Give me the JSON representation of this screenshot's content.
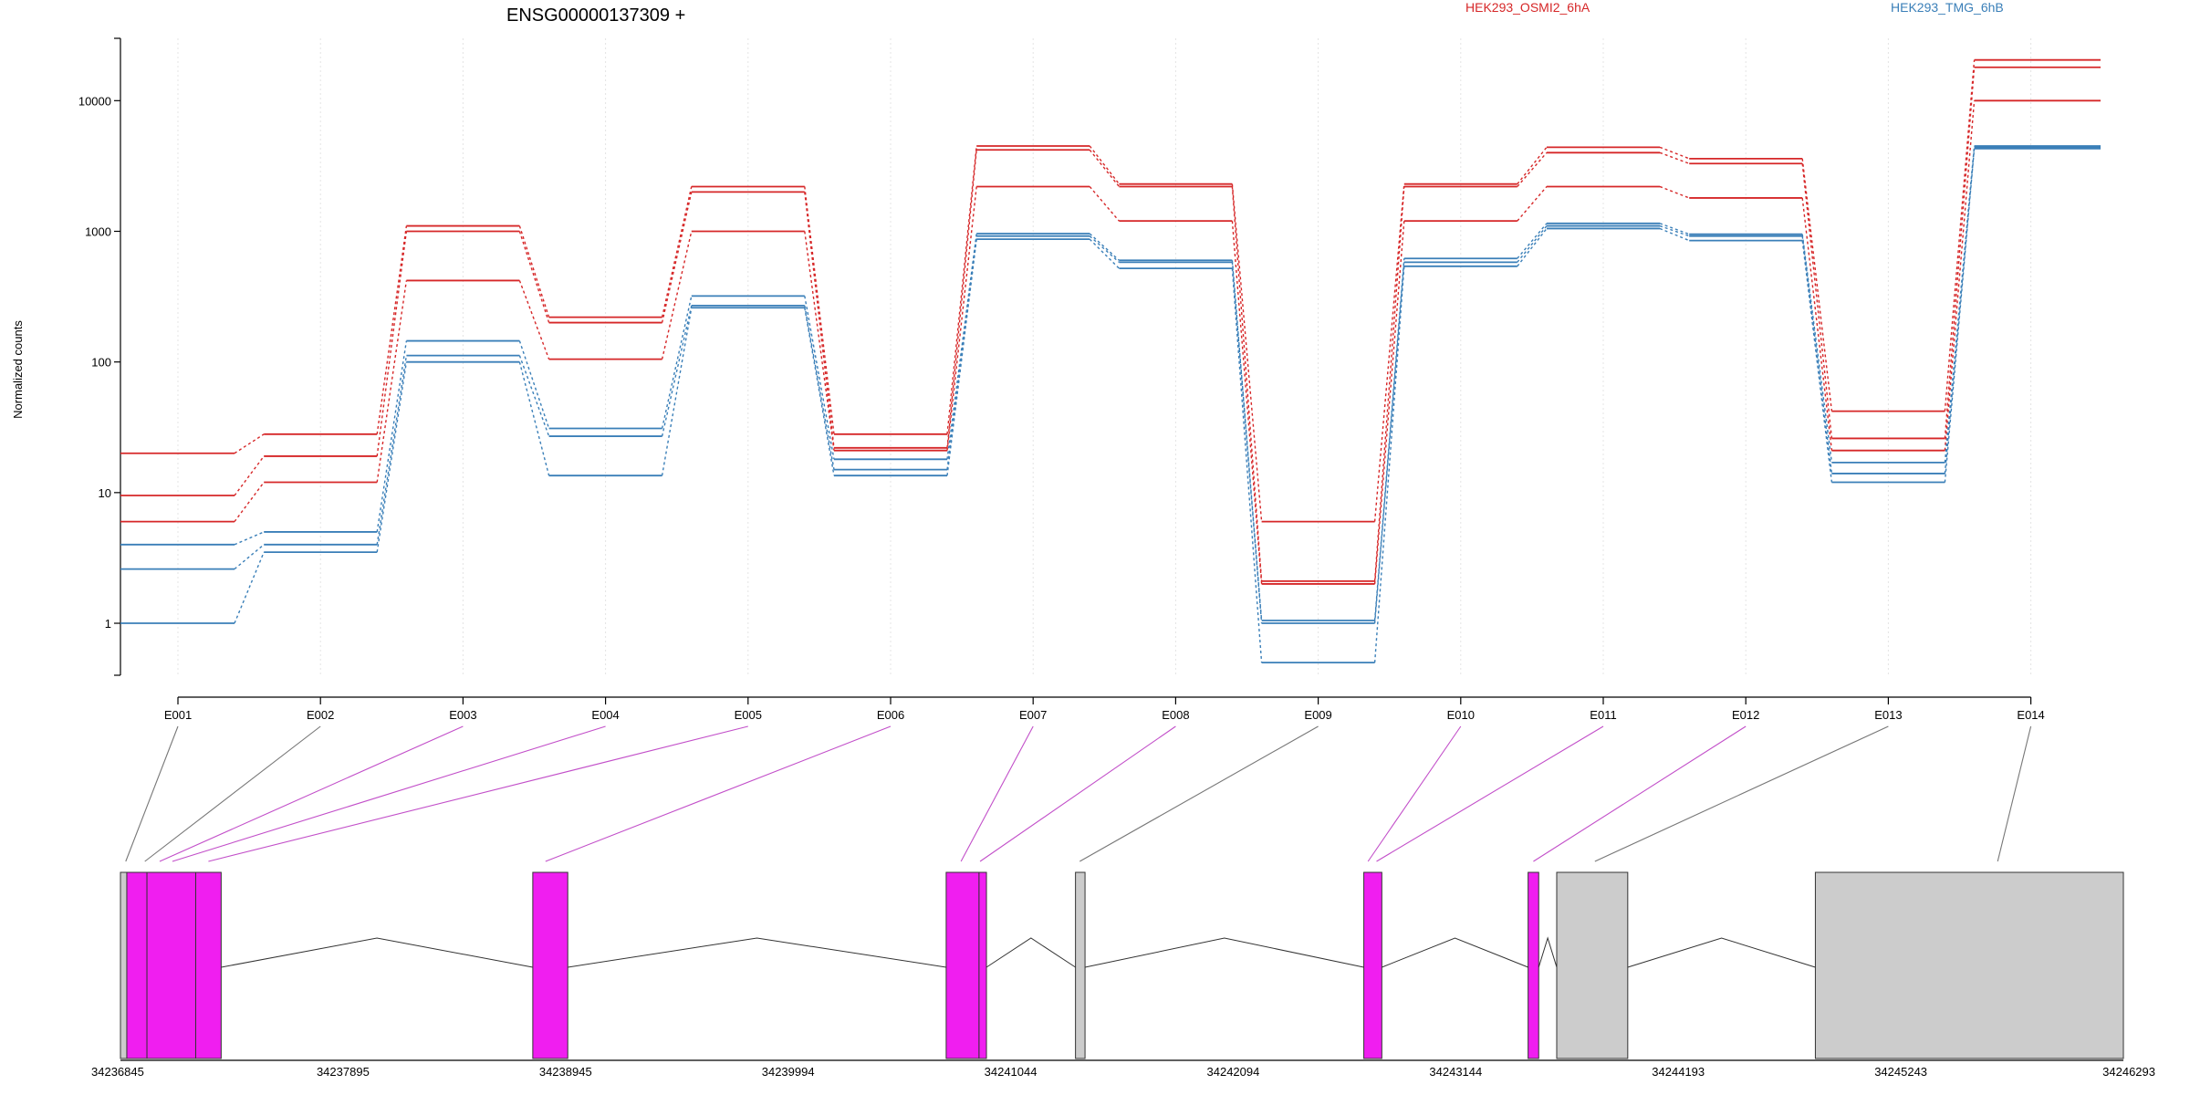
{
  "chart_data": {
    "type": "line",
    "title": "ENSG00000137309 +",
    "ylabel": "Normalized counts",
    "xlabel": "",
    "y_scale": "log",
    "ylim": [
      0.4,
      30000
    ],
    "y_ticks": [
      1,
      10,
      100,
      1000,
      10000
    ],
    "y_tick_labels": [
      "1",
      "10",
      "100",
      "1000",
      "10000"
    ],
    "categories": [
      "E001",
      "E002",
      "E003",
      "E004",
      "E005",
      "E006",
      "E007",
      "E008",
      "E009",
      "E010",
      "E011",
      "E012",
      "E013",
      "E014"
    ],
    "grid": "vertical dotted at exon ticks",
    "legend": [
      {
        "name": "HEK293_OSMI2_6hA",
        "color": "#d62728",
        "position": "top"
      },
      {
        "name": "HEK293_TMG_6hB",
        "color": "#3a7fb8",
        "position": "top-right"
      }
    ],
    "series": [
      {
        "group": "HEK293_OSMI2_6hA",
        "color": "#d62728",
        "values": [
          20,
          28,
          1100,
          220,
          2200,
          28,
          4500,
          2300,
          6,
          2300,
          4400,
          3600,
          42,
          20500
        ]
      },
      {
        "group": "HEK293_OSMI2_6hA",
        "color": "#d62728",
        "values": [
          9.5,
          19,
          1000,
          200,
          2000,
          22,
          4200,
          2200,
          2.1,
          2200,
          4000,
          3300,
          26,
          18000
        ]
      },
      {
        "group": "HEK293_OSMI2_6hA",
        "color": "#d62728",
        "values": [
          6,
          12,
          420,
          105,
          1000,
          21,
          2200,
          1200,
          2,
          1200,
          2200,
          1800,
          21,
          10000
        ]
      },
      {
        "group": "HEK293_TMG_6hB",
        "color": "#3a7fb8",
        "values": [
          4,
          5,
          145,
          31,
          320,
          18,
          960,
          600,
          1.05,
          620,
          1150,
          950,
          17,
          4500
        ]
      },
      {
        "group": "HEK293_TMG_6hB",
        "color": "#3a7fb8",
        "values": [
          2.6,
          4,
          112,
          27,
          270,
          15,
          920,
          580,
          1,
          580,
          1100,
          920,
          14,
          4400
        ]
      },
      {
        "group": "HEK293_TMG_6hB",
        "color": "#3a7fb8",
        "values": [
          1,
          3.5,
          100,
          13.5,
          260,
          13.5,
          870,
          520,
          0.5,
          540,
          1050,
          850,
          12,
          4300
        ]
      }
    ],
    "gene_model": {
      "genomic_ticks": [
        "34236845",
        "34237895",
        "34238945",
        "34239994",
        "34241044",
        "34242094",
        "34243144",
        "34244193",
        "34245243",
        "34246293"
      ],
      "range": [
        34236845,
        34246293
      ],
      "exon_color_tested": "#f01ef0",
      "exon_color_other": "#cccccc",
      "exons": [
        {
          "id": "E001",
          "start": 34236845,
          "end": 34236875,
          "color": "#cccccc"
        },
        {
          "id": "E002",
          "start": 34236875,
          "end": 34236970,
          "color": "#f01ef0"
        },
        {
          "id": "E003",
          "start": 34236970,
          "end": 34237200,
          "color": "#f01ef0"
        },
        {
          "id": "E004",
          "start": 34237200,
          "end": 34237320,
          "color": "#f01ef0"
        },
        {
          "id": "E005",
          "start": 34238790,
          "end": 34238955,
          "color": "#f01ef0"
        },
        {
          "id": "E006",
          "start": 34240740,
          "end": 34240895,
          "color": "#f01ef0"
        },
        {
          "id": "E007",
          "start": 34240895,
          "end": 34240930,
          "color": "#f01ef0"
        },
        {
          "id": "E008",
          "start": 34241350,
          "end": 34241395,
          "color": "#cccccc"
        },
        {
          "id": "E009",
          "start": 34242710,
          "end": 34242795,
          "color": "#f01ef0"
        },
        {
          "id": "E010",
          "start": 34243485,
          "end": 34243535,
          "color": "#f01ef0"
        },
        {
          "id": "E011",
          "start": 34243620,
          "end": 34243955,
          "color": "#cccccc"
        },
        {
          "id": "E012",
          "start": 34244840,
          "end": 34246293,
          "color": "#cccccc"
        }
      ],
      "connectors": [
        {
          "bin": "E001",
          "pos": 34236870,
          "color": "#777777"
        },
        {
          "bin": "E002",
          "pos": 34236960,
          "color": "#777777"
        },
        {
          "bin": "E003",
          "pos": 34237030,
          "color": "#c24fc9"
        },
        {
          "bin": "E004",
          "pos": 34237090,
          "color": "#c24fc9"
        },
        {
          "bin": "E005",
          "pos": 34237260,
          "color": "#c24fc9"
        },
        {
          "bin": "E006",
          "pos": 34238850,
          "color": "#c24fc9"
        },
        {
          "bin": "E007",
          "pos": 34240810,
          "color": "#c24fc9"
        },
        {
          "bin": "E008",
          "pos": 34240900,
          "color": "#c24fc9"
        },
        {
          "bin": "E009",
          "pos": 34241370,
          "color": "#777777"
        },
        {
          "bin": "E010",
          "pos": 34242730,
          "color": "#c24fc9"
        },
        {
          "bin": "E011",
          "pos": 34242770,
          "color": "#c24fc9"
        },
        {
          "bin": "E012",
          "pos": 34243510,
          "color": "#c24fc9"
        },
        {
          "bin": "E013",
          "pos": 34243800,
          "color": "#777777"
        },
        {
          "bin": "E014",
          "pos": 34245700,
          "color": "#777777"
        }
      ]
    }
  }
}
